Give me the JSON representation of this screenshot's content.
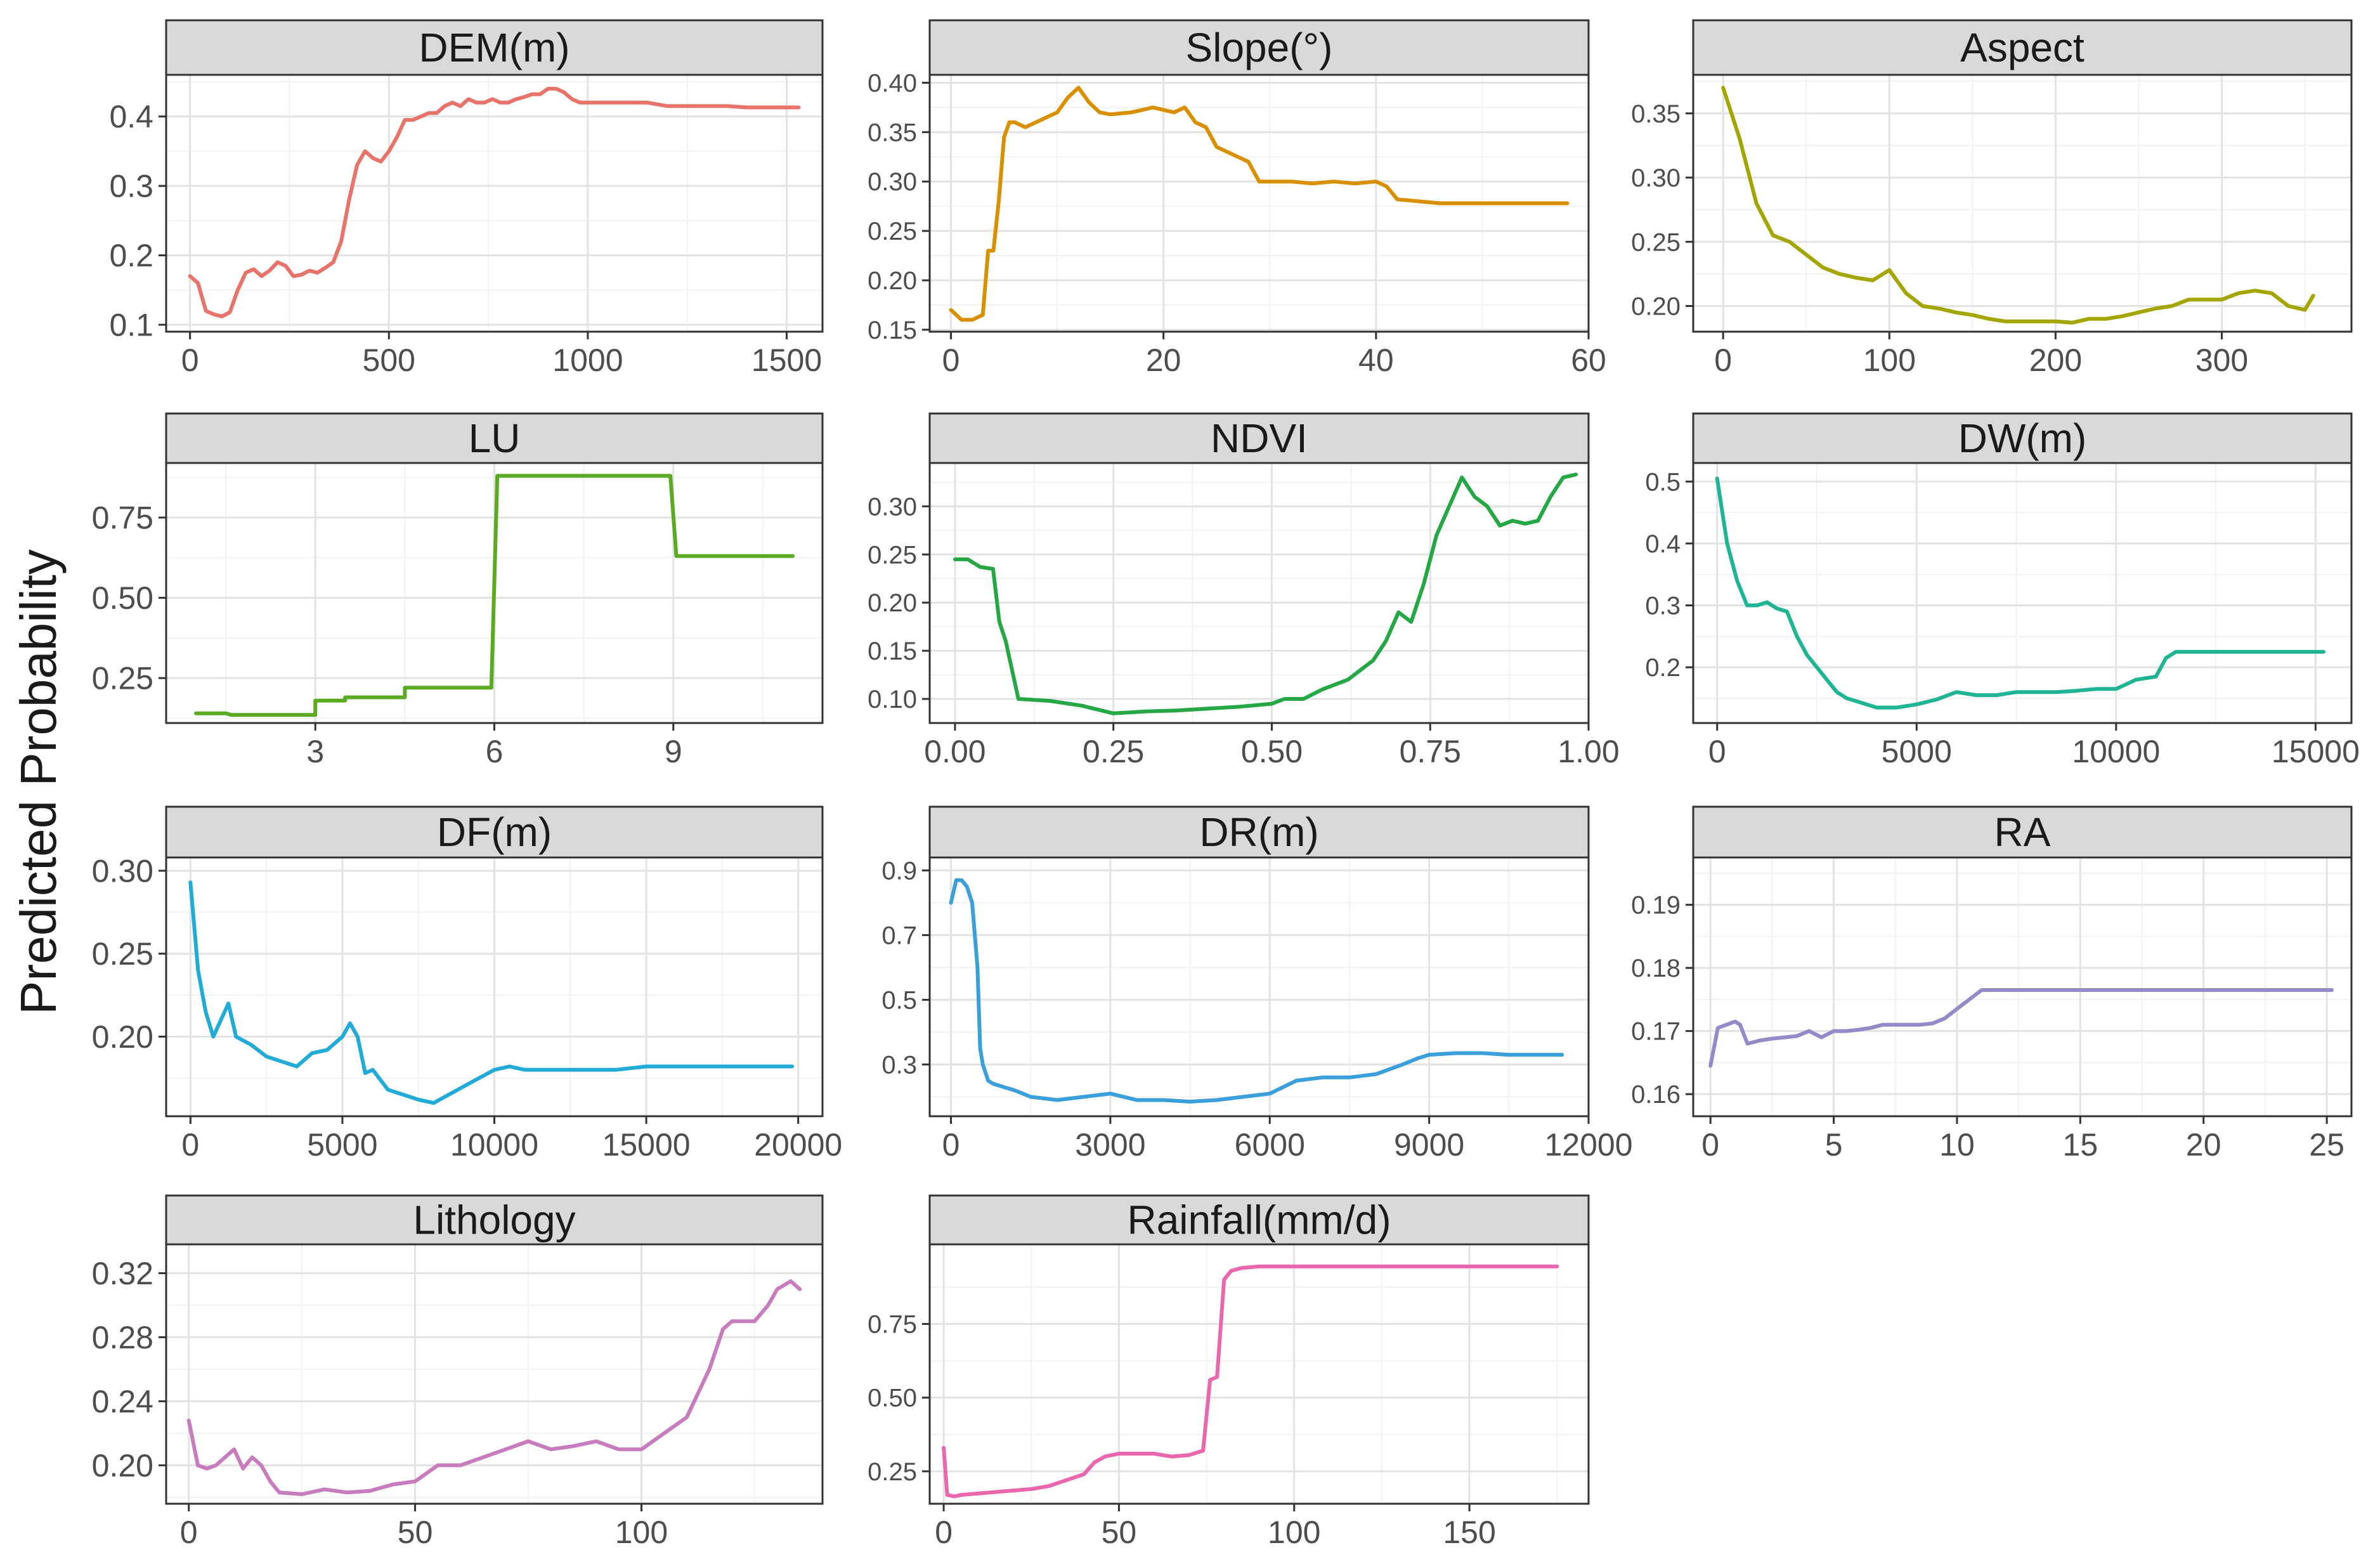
{
  "figure": {
    "ylabel": "Predicted Probability"
  },
  "chart_data": [
    {
      "type": "line",
      "title": "DEM(m)",
      "color": "#E8736B",
      "xlim": [
        -60,
        1590
      ],
      "ylim": [
        0.09,
        0.46
      ],
      "xticks": [
        0,
        500,
        1000,
        1500
      ],
      "xtick_labels": [
        "0",
        "500",
        "1000",
        "1500"
      ],
      "yticks": [
        0.1,
        0.2,
        0.3,
        0.4
      ],
      "ytick_labels": [
        "0.1",
        "0.2",
        "0.3",
        "0.4"
      ],
      "x": [
        0,
        20,
        40,
        60,
        80,
        100,
        120,
        140,
        160,
        180,
        200,
        220,
        240,
        260,
        280,
        300,
        320,
        340,
        360,
        380,
        400,
        420,
        440,
        460,
        480,
        500,
        520,
        540,
        560,
        580,
        600,
        620,
        640,
        660,
        680,
        700,
        720,
        740,
        760,
        780,
        800,
        820,
        840,
        860,
        880,
        900,
        920,
        940,
        960,
        980,
        1000,
        1050,
        1100,
        1150,
        1200,
        1250,
        1300,
        1350,
        1400,
        1450,
        1500,
        1530
      ],
      "y": [
        0.17,
        0.16,
        0.12,
        0.115,
        0.112,
        0.118,
        0.15,
        0.175,
        0.18,
        0.17,
        0.178,
        0.19,
        0.185,
        0.17,
        0.172,
        0.178,
        0.175,
        0.182,
        0.19,
        0.22,
        0.28,
        0.33,
        0.35,
        0.34,
        0.335,
        0.35,
        0.37,
        0.395,
        0.395,
        0.4,
        0.405,
        0.405,
        0.415,
        0.42,
        0.415,
        0.425,
        0.42,
        0.42,
        0.425,
        0.42,
        0.42,
        0.425,
        0.428,
        0.432,
        0.432,
        0.44,
        0.44,
        0.435,
        0.425,
        0.42,
        0.42,
        0.42,
        0.42,
        0.42,
        0.415,
        0.415,
        0.415,
        0.415,
        0.413,
        0.413,
        0.413,
        0.413
      ]
    },
    {
      "type": "line",
      "title": "Slope(°)",
      "color": "#D89000",
      "xlim": [
        -2,
        60
      ],
      "ylim": [
        0.148,
        0.408
      ],
      "xticks": [
        0,
        20,
        40,
        60
      ],
      "xtick_labels": [
        "0",
        "20",
        "40",
        "60"
      ],
      "yticks": [
        0.15,
        0.2,
        0.25,
        0.3,
        0.35,
        0.4
      ],
      "ytick_labels": [
        "0.15",
        "0.20",
        "0.25",
        "0.30",
        "0.35",
        "0.40"
      ],
      "x": [
        0,
        1,
        2,
        3,
        3.5,
        4,
        4.5,
        5,
        5.5,
        6,
        7,
        8,
        9,
        10,
        11,
        12,
        13,
        14,
        15,
        17,
        19,
        21,
        22,
        23,
        24,
        25,
        26,
        27,
        28,
        29,
        30,
        32,
        34,
        36,
        38,
        40,
        41,
        42,
        44,
        46,
        48,
        50,
        52,
        54,
        56,
        58
      ],
      "y": [
        0.17,
        0.16,
        0.16,
        0.165,
        0.23,
        0.23,
        0.28,
        0.345,
        0.36,
        0.36,
        0.355,
        0.36,
        0.365,
        0.37,
        0.385,
        0.395,
        0.38,
        0.37,
        0.368,
        0.37,
        0.375,
        0.37,
        0.375,
        0.36,
        0.355,
        0.335,
        0.33,
        0.325,
        0.32,
        0.3,
        0.3,
        0.3,
        0.298,
        0.3,
        0.298,
        0.3,
        0.295,
        0.282,
        0.28,
        0.278,
        0.278,
        0.278,
        0.278,
        0.278,
        0.278,
        0.278
      ]
    },
    {
      "type": "line",
      "title": "Aspect",
      "color": "#A3A500",
      "xlim": [
        -18,
        378
      ],
      "ylim": [
        0.18,
        0.38
      ],
      "xticks": [
        0,
        100,
        200,
        300
      ],
      "xtick_labels": [
        "0",
        "100",
        "200",
        "300"
      ],
      "yticks": [
        0.2,
        0.25,
        0.3,
        0.35
      ],
      "ytick_labels": [
        "0.20",
        "0.25",
        "0.30",
        "0.35"
      ],
      "x": [
        0,
        10,
        20,
        30,
        40,
        50,
        60,
        70,
        80,
        90,
        100,
        110,
        120,
        130,
        140,
        150,
        160,
        170,
        180,
        190,
        200,
        210,
        220,
        230,
        240,
        250,
        260,
        270,
        280,
        290,
        300,
        310,
        320,
        330,
        340,
        350,
        355
      ],
      "y": [
        0.37,
        0.33,
        0.28,
        0.255,
        0.25,
        0.24,
        0.23,
        0.225,
        0.222,
        0.22,
        0.228,
        0.21,
        0.2,
        0.198,
        0.195,
        0.193,
        0.19,
        0.188,
        0.188,
        0.188,
        0.188,
        0.187,
        0.19,
        0.19,
        0.192,
        0.195,
        0.198,
        0.2,
        0.205,
        0.205,
        0.205,
        0.21,
        0.212,
        0.21,
        0.2,
        0.197,
        0.208
      ]
    },
    {
      "type": "line",
      "title": "LU",
      "color": "#5BAA24",
      "xlim": [
        0.5,
        11.5
      ],
      "ylim": [
        0.11,
        0.92
      ],
      "xticks": [
        3,
        6,
        9
      ],
      "xtick_labels": [
        "3",
        "6",
        "9"
      ],
      "yticks": [
        0.25,
        0.5,
        0.75
      ],
      "ytick_labels": [
        "0.25",
        "0.50",
        "0.75"
      ],
      "x": [
        1,
        1.5,
        1.6,
        3,
        3,
        3.5,
        3.5,
        4.5,
        4.5,
        5.95,
        6.05,
        8.95,
        9.05,
        11
      ],
      "y": [
        0.14,
        0.14,
        0.135,
        0.135,
        0.18,
        0.18,
        0.19,
        0.19,
        0.22,
        0.22,
        0.88,
        0.88,
        0.63,
        0.63
      ]
    },
    {
      "type": "line",
      "title": "NDVI",
      "color": "#25A745",
      "xlim": [
        -0.04,
        1.0
      ],
      "ylim": [
        0.075,
        0.345
      ],
      "xticks": [
        0.0,
        0.25,
        0.5,
        0.75,
        1.0
      ],
      "xtick_labels": [
        "0.00",
        "0.25",
        "0.50",
        "0.75",
        "1.00"
      ],
      "yticks": [
        0.1,
        0.15,
        0.2,
        0.25,
        0.3
      ],
      "ytick_labels": [
        "0.10",
        "0.15",
        "0.20",
        "0.25",
        "0.30"
      ],
      "x": [
        0.0,
        0.02,
        0.04,
        0.06,
        0.07,
        0.08,
        0.1,
        0.15,
        0.2,
        0.25,
        0.3,
        0.35,
        0.4,
        0.45,
        0.5,
        0.52,
        0.55,
        0.58,
        0.6,
        0.62,
        0.64,
        0.66,
        0.68,
        0.7,
        0.72,
        0.74,
        0.76,
        0.78,
        0.8,
        0.82,
        0.84,
        0.86,
        0.88,
        0.9,
        0.92,
        0.94,
        0.96,
        0.98
      ],
      "y": [
        0.245,
        0.245,
        0.237,
        0.235,
        0.18,
        0.16,
        0.1,
        0.098,
        0.093,
        0.085,
        0.087,
        0.088,
        0.09,
        0.092,
        0.095,
        0.1,
        0.1,
        0.11,
        0.115,
        0.12,
        0.13,
        0.14,
        0.16,
        0.19,
        0.18,
        0.22,
        0.27,
        0.3,
        0.33,
        0.31,
        0.3,
        0.28,
        0.285,
        0.282,
        0.285,
        0.31,
        0.33,
        0.333
      ]
    },
    {
      "type": "line",
      "title": "DW(m)",
      "color": "#1FB594",
      "xlim": [
        -600,
        15900
      ],
      "ylim": [
        0.11,
        0.53
      ],
      "xticks": [
        0,
        5000,
        10000,
        15000
      ],
      "xtick_labels": [
        "0",
        "5000",
        "10000",
        "15000"
      ],
      "yticks": [
        0.2,
        0.3,
        0.4,
        0.5
      ],
      "ytick_labels": [
        "0.2",
        "0.3",
        "0.4",
        "0.5"
      ],
      "x": [
        0,
        250,
        500,
        750,
        1000,
        1250,
        1500,
        1750,
        2000,
        2250,
        2500,
        2750,
        3000,
        3250,
        3500,
        3750,
        4000,
        4500,
        5000,
        5500,
        6000,
        6500,
        7000,
        7500,
        8000,
        8500,
        9000,
        9500,
        10000,
        10500,
        11000,
        11250,
        11500,
        12000,
        13000,
        14000,
        15000,
        15200
      ],
      "y": [
        0.505,
        0.4,
        0.34,
        0.3,
        0.3,
        0.305,
        0.295,
        0.29,
        0.25,
        0.22,
        0.2,
        0.18,
        0.16,
        0.15,
        0.145,
        0.14,
        0.135,
        0.135,
        0.14,
        0.148,
        0.16,
        0.155,
        0.155,
        0.16,
        0.16,
        0.16,
        0.162,
        0.165,
        0.165,
        0.18,
        0.185,
        0.215,
        0.225,
        0.225,
        0.225,
        0.225,
        0.225,
        0.225
      ]
    },
    {
      "type": "line",
      "title": "DF(m)",
      "color": "#21ABD6",
      "xlim": [
        -800,
        20800
      ],
      "ylim": [
        0.152,
        0.308
      ],
      "xticks": [
        0,
        5000,
        10000,
        15000,
        20000
      ],
      "xtick_labels": [
        "0",
        "5000",
        "10000",
        "15000",
        "20000"
      ],
      "yticks": [
        0.2,
        0.25,
        0.3
      ],
      "ytick_labels": [
        "0.20",
        "0.25",
        "0.30"
      ],
      "x": [
        0,
        250,
        500,
        750,
        1000,
        1250,
        1500,
        2000,
        2500,
        3000,
        3500,
        4000,
        4500,
        5000,
        5250,
        5500,
        5750,
        6000,
        6500,
        7000,
        7500,
        8000,
        8500,
        9000,
        9500,
        10000,
        10500,
        11000,
        12000,
        13000,
        14000,
        15000,
        16000,
        17000,
        18000,
        19000,
        19800
      ],
      "y": [
        0.293,
        0.24,
        0.215,
        0.2,
        0.21,
        0.22,
        0.2,
        0.195,
        0.188,
        0.185,
        0.182,
        0.19,
        0.192,
        0.2,
        0.208,
        0.2,
        0.178,
        0.18,
        0.168,
        0.165,
        0.162,
        0.16,
        0.165,
        0.17,
        0.175,
        0.18,
        0.182,
        0.18,
        0.18,
        0.18,
        0.18,
        0.182,
        0.182,
        0.182,
        0.182,
        0.182,
        0.182
      ]
    },
    {
      "type": "line",
      "title": "DR(m)",
      "color": "#3A9FDA",
      "xlim": [
        -400,
        12000
      ],
      "ylim": [
        0.14,
        0.94
      ],
      "xticks": [
        0,
        3000,
        6000,
        9000,
        12000
      ],
      "xtick_labels": [
        "0",
        "3000",
        "6000",
        "9000",
        "12000"
      ],
      "yticks": [
        0.3,
        0.5,
        0.7,
        0.9
      ],
      "ytick_labels": [
        "0.3",
        "0.5",
        "0.7",
        "0.9"
      ],
      "x": [
        0,
        100,
        200,
        300,
        400,
        500,
        550,
        600,
        700,
        800,
        1000,
        1200,
        1500,
        2000,
        2500,
        3000,
        3500,
        4000,
        4500,
        5000,
        5500,
        6000,
        6500,
        7000,
        7500,
        8000,
        8500,
        8800,
        9000,
        9500,
        10000,
        10500,
        11000,
        11500
      ],
      "y": [
        0.8,
        0.87,
        0.87,
        0.85,
        0.8,
        0.6,
        0.35,
        0.3,
        0.25,
        0.24,
        0.23,
        0.22,
        0.2,
        0.19,
        0.2,
        0.21,
        0.19,
        0.19,
        0.185,
        0.19,
        0.2,
        0.21,
        0.25,
        0.26,
        0.26,
        0.27,
        0.3,
        0.32,
        0.33,
        0.335,
        0.335,
        0.33,
        0.33,
        0.33
      ]
    },
    {
      "type": "line",
      "title": "RA",
      "color": "#9589C8",
      "xlim": [
        -0.7,
        26
      ],
      "ylim": [
        0.1565,
        0.1975
      ],
      "xticks": [
        0,
        5,
        10,
        15,
        20,
        25
      ],
      "xtick_labels": [
        "0",
        "5",
        "10",
        "15",
        "20",
        "25"
      ],
      "yticks": [
        0.16,
        0.17,
        0.18,
        0.19
      ],
      "ytick_labels": [
        "0.16",
        "0.17",
        "0.18",
        "0.19"
      ],
      "x": [
        0,
        0.3,
        1,
        1.2,
        1.5,
        2,
        2.5,
        3,
        3.5,
        4,
        4.5,
        5,
        5.5,
        6,
        6.5,
        7,
        7.5,
        8,
        8.5,
        9,
        9.5,
        10,
        10.5,
        11,
        12,
        14,
        16,
        18,
        20,
        22,
        24,
        25.2
      ],
      "y": [
        0.1645,
        0.1705,
        0.1715,
        0.171,
        0.168,
        0.1685,
        0.1688,
        0.169,
        0.1692,
        0.17,
        0.169,
        0.17,
        0.17,
        0.1702,
        0.1705,
        0.171,
        0.171,
        0.171,
        0.171,
        0.1712,
        0.172,
        0.1735,
        0.175,
        0.1765,
        0.1765,
        0.1765,
        0.1765,
        0.1765,
        0.1765,
        0.1765,
        0.1765,
        0.1765
      ]
    },
    {
      "type": "line",
      "title": "Lithology",
      "color": "#C77CBE",
      "xlim": [
        -5,
        140
      ],
      "ylim": [
        0.176,
        0.338
      ],
      "xticks": [
        0,
        50,
        100
      ],
      "xtick_labels": [
        "0",
        "50",
        "100"
      ],
      "yticks": [
        0.2,
        0.24,
        0.28,
        0.32
      ],
      "ytick_labels": [
        "0.20",
        "0.24",
        "0.28",
        "0.32"
      ],
      "x": [
        0,
        2,
        4,
        6,
        8,
        10,
        12,
        14,
        16,
        18,
        20,
        25,
        30,
        35,
        40,
        45,
        50,
        55,
        60,
        65,
        70,
        75,
        80,
        85,
        90,
        95,
        100,
        105,
        110,
        115,
        118,
        120,
        125,
        128,
        130,
        133,
        135
      ],
      "y": [
        0.228,
        0.2,
        0.198,
        0.2,
        0.205,
        0.21,
        0.198,
        0.205,
        0.2,
        0.19,
        0.183,
        0.182,
        0.185,
        0.183,
        0.184,
        0.188,
        0.19,
        0.2,
        0.2,
        0.205,
        0.21,
        0.215,
        0.21,
        0.212,
        0.215,
        0.21,
        0.21,
        0.22,
        0.23,
        0.26,
        0.285,
        0.29,
        0.29,
        0.3,
        0.31,
        0.315,
        0.31
      ]
    },
    {
      "type": "line",
      "title": "Rainfall(mm/d)",
      "color": "#E967AC",
      "xlim": [
        -4,
        184
      ],
      "ylim": [
        0.14,
        1.02
      ],
      "xticks": [
        0,
        50,
        100,
        150
      ],
      "xtick_labels": [
        "0",
        "50",
        "100",
        "150"
      ],
      "yticks": [
        0.25,
        0.5,
        0.75
      ],
      "ytick_labels": [
        "0.25",
        "0.50",
        "0.75"
      ],
      "x": [
        0,
        1,
        3,
        5,
        10,
        15,
        20,
        25,
        30,
        35,
        40,
        43,
        46,
        50,
        55,
        60,
        65,
        70,
        74,
        76,
        78,
        80,
        82,
        85,
        90,
        100,
        110,
        120,
        130,
        140,
        150,
        160,
        170,
        175
      ],
      "y": [
        0.33,
        0.17,
        0.165,
        0.17,
        0.175,
        0.18,
        0.185,
        0.19,
        0.2,
        0.22,
        0.24,
        0.28,
        0.3,
        0.31,
        0.31,
        0.31,
        0.3,
        0.305,
        0.32,
        0.56,
        0.57,
        0.9,
        0.93,
        0.94,
        0.945,
        0.945,
        0.945,
        0.945,
        0.945,
        0.945,
        0.945,
        0.945,
        0.945,
        0.945
      ]
    }
  ]
}
